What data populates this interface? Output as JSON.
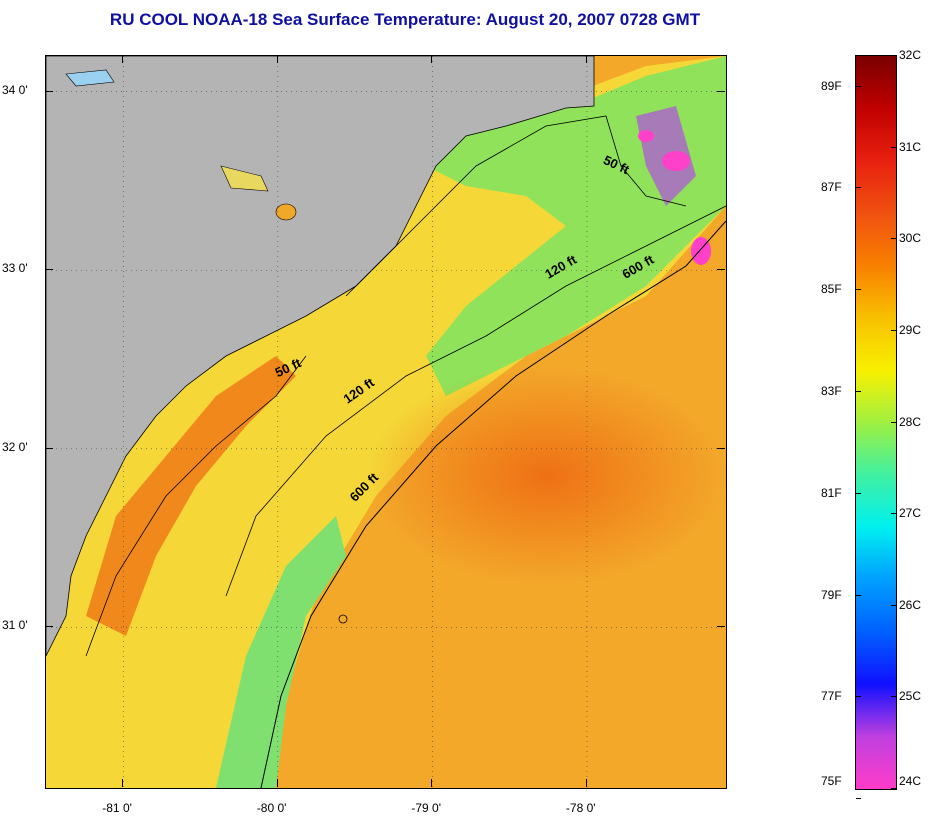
{
  "title": "RU COOL  NOAA-18  Sea Surface Temperature:  August 20, 2007 0728 GMT",
  "colors": {
    "title": "#1010a0",
    "land": "#b4b4b4",
    "sea_warm": "#f0a020",
    "sea_mid": "#f8e030",
    "sea_cool": "#60e080"
  },
  "map": {
    "lon_labels": [
      "-81 0'",
      "-80 0'",
      "-79 0'",
      "-78 0'"
    ],
    "lat_labels": [
      "34 0'",
      "33 0'",
      "32 0'",
      "31 0'"
    ],
    "lon_values": [
      -81,
      -80,
      -79,
      -78
    ],
    "lat_values": [
      34,
      33,
      32,
      31
    ],
    "lon_range": [
      -81.5,
      -77.1
    ],
    "lat_range": [
      30.1,
      34.2
    ],
    "isobath_labels": [
      {
        "text": "50 ft",
        "lon": -77.9,
        "lat": 33.6,
        "rot": 25
      },
      {
        "text": "120 ft",
        "lon": -78.25,
        "lat": 32.95,
        "rot": -30
      },
      {
        "text": "600 ft",
        "lon": -77.75,
        "lat": 32.95,
        "rot": -30
      },
      {
        "text": "50 ft",
        "lon": -80.0,
        "lat": 32.4,
        "rot": -25
      },
      {
        "text": "120 ft",
        "lon": -79.55,
        "lat": 32.25,
        "rot": -35
      },
      {
        "text": "600 ft",
        "lon": -79.5,
        "lat": 31.7,
        "rot": -45
      }
    ]
  },
  "colorbar": {
    "stops": [
      "#ff3cc8",
      "#c040e0",
      "#1010ff",
      "#0060ff",
      "#00a0ff",
      "#00f0f0",
      "#40f0a0",
      "#a0f040",
      "#f8f000",
      "#f8c000",
      "#f88000",
      "#f05010",
      "#e82010",
      "#c00000",
      "#7a0000"
    ],
    "celsius": [
      {
        "label": "32C",
        "value": 32
      },
      {
        "label": "31C",
        "value": 31
      },
      {
        "label": "30C",
        "value": 30
      },
      {
        "label": "29C",
        "value": 29
      },
      {
        "label": "28C",
        "value": 28
      },
      {
        "label": "27C",
        "value": 27
      },
      {
        "label": "26C",
        "value": 26
      },
      {
        "label": "25C",
        "value": 25
      },
      {
        "label": "24C",
        "value": 24
      }
    ],
    "fahrenheit": [
      {
        "label": "89F",
        "value": 89
      },
      {
        "label": "87F",
        "value": 87
      },
      {
        "label": "85F",
        "value": 85
      },
      {
        "label": "83F",
        "value": 83
      },
      {
        "label": "81F",
        "value": 81
      },
      {
        "label": "79F",
        "value": 79
      },
      {
        "label": "77F",
        "value": 77
      },
      {
        "label": "75F",
        "value": 75
      }
    ],
    "range_c": [
      24,
      32
    ]
  }
}
